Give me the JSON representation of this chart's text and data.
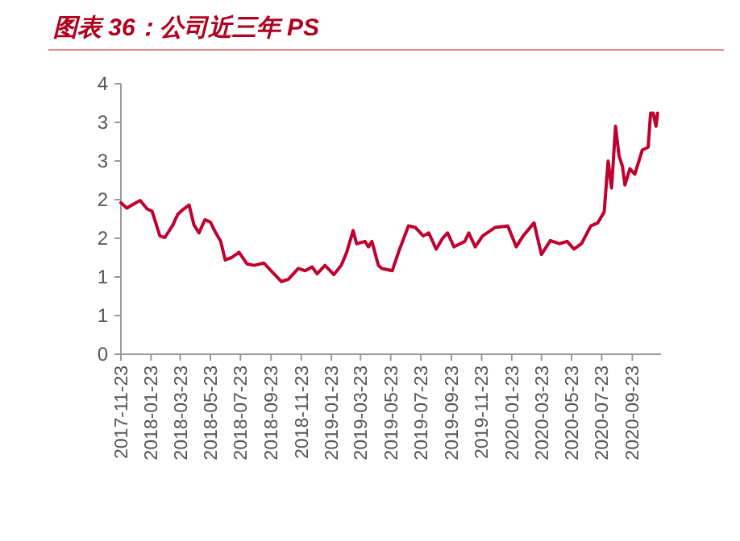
{
  "chart_data": {
    "type": "line",
    "title": "图表 36：公司近三年 PS",
    "x": [
      "2017-11-23",
      "2017-12-05",
      "2017-12-15",
      "2018-01-01",
      "2018-01-15",
      "2018-01-25",
      "2018-02-10",
      "2018-02-20",
      "2018-03-08",
      "2018-03-18",
      "2018-03-30",
      "2018-04-10",
      "2018-04-20",
      "2018-04-30",
      "2018-05-12",
      "2018-05-23",
      "2018-06-03",
      "2018-06-13",
      "2018-06-22",
      "2018-07-05",
      "2018-07-20",
      "2018-08-05",
      "2018-08-20",
      "2018-09-08",
      "2018-09-23",
      "2018-10-14",
      "2018-10-28",
      "2018-11-17",
      "2018-12-01",
      "2018-12-15",
      "2018-12-25",
      "2019-01-10",
      "2019-01-28",
      "2019-02-12",
      "2019-02-23",
      "2019-03-08",
      "2019-03-15",
      "2019-04-01",
      "2019-04-08",
      "2019-04-15",
      "2019-04-28",
      "2019-05-05",
      "2019-05-26",
      "2019-06-10",
      "2019-06-28",
      "2019-07-12",
      "2019-07-28",
      "2019-08-08",
      "2019-08-23",
      "2019-09-05",
      "2019-09-15",
      "2019-09-28",
      "2019-10-20",
      "2019-10-28",
      "2019-11-10",
      "2019-11-25",
      "2019-12-20",
      "2020-01-15",
      "2020-02-01",
      "2020-02-15",
      "2020-03-08",
      "2020-03-23",
      "2020-04-10",
      "2020-04-28",
      "2020-05-14",
      "2020-05-28",
      "2020-06-12",
      "2020-07-01",
      "2020-07-15",
      "2020-07-28",
      "2020-08-05",
      "2020-08-12",
      "2020-08-20",
      "2020-08-27",
      "2020-09-03",
      "2020-09-08",
      "2020-09-18",
      "2020-09-28",
      "2020-10-13",
      "2020-10-25",
      "2020-10-30",
      "2020-11-04",
      "2020-11-10",
      "2020-11-13"
    ],
    "series": [
      {
        "color": "#c0002f",
        "values": [
          1.96,
          1.89,
          1.93,
          1.99,
          1.88,
          1.85,
          1.53,
          1.51,
          1.67,
          1.81,
          1.88,
          1.93,
          1.67,
          1.57,
          1.74,
          1.71,
          1.57,
          1.46,
          1.22,
          1.25,
          1.32,
          1.17,
          1.15,
          1.18,
          1.08,
          0.94,
          0.97,
          1.11,
          1.08,
          1.13,
          1.04,
          1.15,
          1.03,
          1.15,
          1.32,
          1.6,
          1.43,
          1.46,
          1.39,
          1.46,
          1.15,
          1.11,
          1.08,
          1.36,
          1.66,
          1.64,
          1.53,
          1.57,
          1.36,
          1.5,
          1.57,
          1.39,
          1.46,
          1.57,
          1.39,
          1.53,
          1.64,
          1.66,
          1.39,
          1.53,
          1.7,
          1.29,
          1.47,
          1.43,
          1.46,
          1.36,
          1.43,
          1.66,
          1.7,
          1.84,
          2.5,
          2.15,
          2.95,
          2.57,
          2.43,
          2.19,
          2.4,
          2.33,
          2.64,
          2.68,
          3.12,
          3.12,
          2.95,
          3.12
        ]
      }
    ],
    "xlim": [
      "2017-11-23",
      "2020-11-20"
    ],
    "xticks": [
      "2017-11-23",
      "2018-01-23",
      "2018-03-23",
      "2018-05-23",
      "2018-07-23",
      "2018-09-23",
      "2018-11-23",
      "2019-01-23",
      "2019-03-23",
      "2019-05-23",
      "2019-07-23",
      "2019-09-23",
      "2019-11-23",
      "2020-01-23",
      "2020-03-23",
      "2020-05-23",
      "2020-07-23",
      "2020-09-23"
    ],
    "ylim": [
      0,
      3.5
    ],
    "yticks": [
      0,
      {
        "value": 0.5,
        "label": "1"
      },
      1,
      {
        "value": 1.5,
        "label": "2"
      },
      2,
      {
        "value": 2.5,
        "label": "3"
      },
      3,
      {
        "value": 3.5,
        "label": "4"
      }
    ],
    "grid": false
  }
}
